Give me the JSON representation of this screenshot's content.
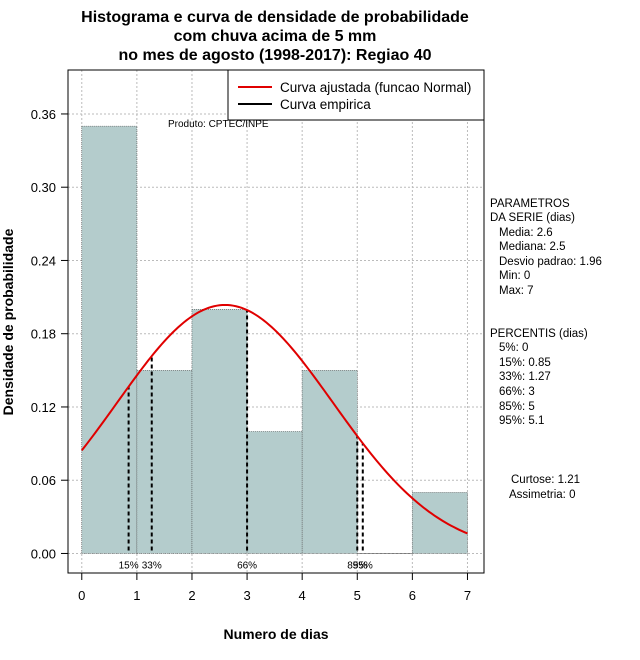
{
  "chart_data": {
    "type": "bar",
    "title_lines": [
      "Histograma e curva de densidade de probabilidade",
      "com chuva acima de 5 mm",
      "no mes de agosto (1998-2017): Regiao 40"
    ],
    "xlabel": "Numero de dias",
    "ylabel": "Densidade de probabilidade",
    "xlim": [
      -0.25,
      7.3
    ],
    "ylim": [
      -0.016,
      0.396
    ],
    "x_ticks": [
      0,
      1,
      2,
      3,
      4,
      5,
      6,
      7
    ],
    "y_ticks": [
      0.0,
      0.06,
      0.12,
      0.18,
      0.24,
      0.3,
      0.36
    ],
    "y_tick_labels": [
      "0.00",
      "0.06",
      "0.12",
      "0.18",
      "0.24",
      "0.30",
      "0.36"
    ],
    "bins": [
      {
        "from": 0,
        "to": 1,
        "density": 0.35
      },
      {
        "from": 1,
        "to": 2,
        "density": 0.15
      },
      {
        "from": 2,
        "to": 3,
        "density": 0.2
      },
      {
        "from": 3,
        "to": 4,
        "density": 0.1
      },
      {
        "from": 4,
        "to": 5,
        "density": 0.15
      },
      {
        "from": 5,
        "to": 6,
        "density": 0.0
      },
      {
        "from": 6,
        "to": 7,
        "density": 0.05
      }
    ],
    "fitted_curve": {
      "name": "Curva ajustada (funcao Normal)",
      "distribution": "normal",
      "mean": 2.6,
      "sd": 1.96,
      "color": "#e00000"
    },
    "empirical_curve": {
      "name": "Curva empirica",
      "color": "#000000"
    },
    "percentile_lines": [
      {
        "x": 0.85,
        "label": "15%"
      },
      {
        "x": 1.27,
        "label": "33%"
      },
      {
        "x": 3,
        "label": "66%"
      },
      {
        "x": 5,
        "label": "85%"
      },
      {
        "x": 5.1,
        "label": "95%"
      }
    ],
    "bar_color": "#b4cccc",
    "grid": true,
    "legend_position": "top-right",
    "product_label": "Produto: CPTEC/INPE"
  },
  "side_panel": {
    "parametros_title_1": "PARAMETROS",
    "parametros_title_2": "DA SERIE (dias)",
    "media": "Media: 2.6",
    "mediana": "Mediana: 2.5",
    "desvio": "Desvio padrao: 1.96",
    "min": "Min: 0",
    "max": "Max: 7",
    "percentis_title": "PERCENTIS (dias)",
    "p5": "5%: 0",
    "p15": "15%: 0.85",
    "p33": "33%: 1.27",
    "p66": "66%: 3",
    "p85": "85%: 5",
    "p95": "95%: 5.1",
    "curtose": "Curtose: 1.21",
    "assimetria": "Assimetria: 0"
  }
}
